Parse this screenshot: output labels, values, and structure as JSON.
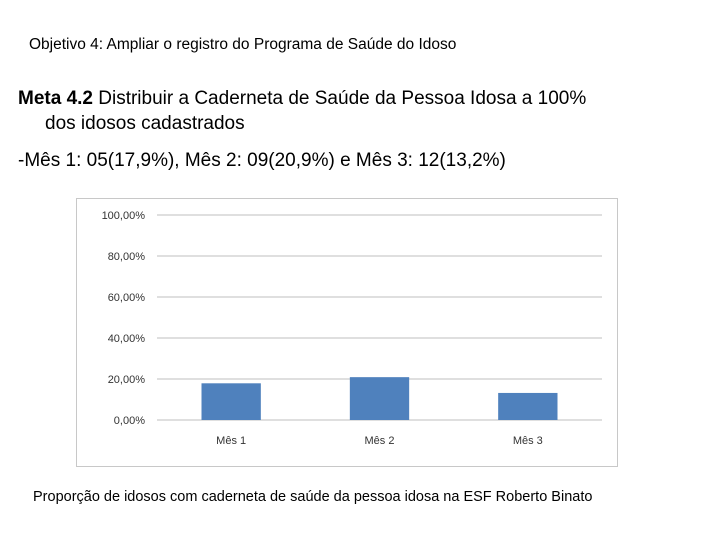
{
  "slide": {
    "header": "Objetivo 4: Ampliar o registro do Programa de Saúde do Idoso",
    "goal_bold": "Meta 4.2",
    "goal_line1": " Distribuir a Caderneta de Saúde da Pessoa Idosa a 100%",
    "goal_line2": "dos idosos cadastrados",
    "months_text": "-Mês 1: 05(17,9%), Mês 2: 09(20,9%) e Mês 3: 12(13,2%)",
    "caption": "Proporção de idosos com caderneta de saúde da pessoa idosa na ESF Roberto Binato"
  },
  "chart_data": {
    "type": "bar",
    "categories": [
      "Mês 1",
      "Mês 2",
      "Mês 3"
    ],
    "values": [
      17.9,
      20.9,
      13.2
    ],
    "ylim": [
      0,
      100
    ],
    "yticks": [
      0,
      20,
      40,
      60,
      80,
      100
    ],
    "ytick_labels": [
      "0,00%",
      "20,00%",
      "40,00%",
      "60,00%",
      "80,00%",
      "100,00%"
    ],
    "grid": true,
    "bar_color": "#4f81bd",
    "grid_color": "#bfbfbf"
  }
}
